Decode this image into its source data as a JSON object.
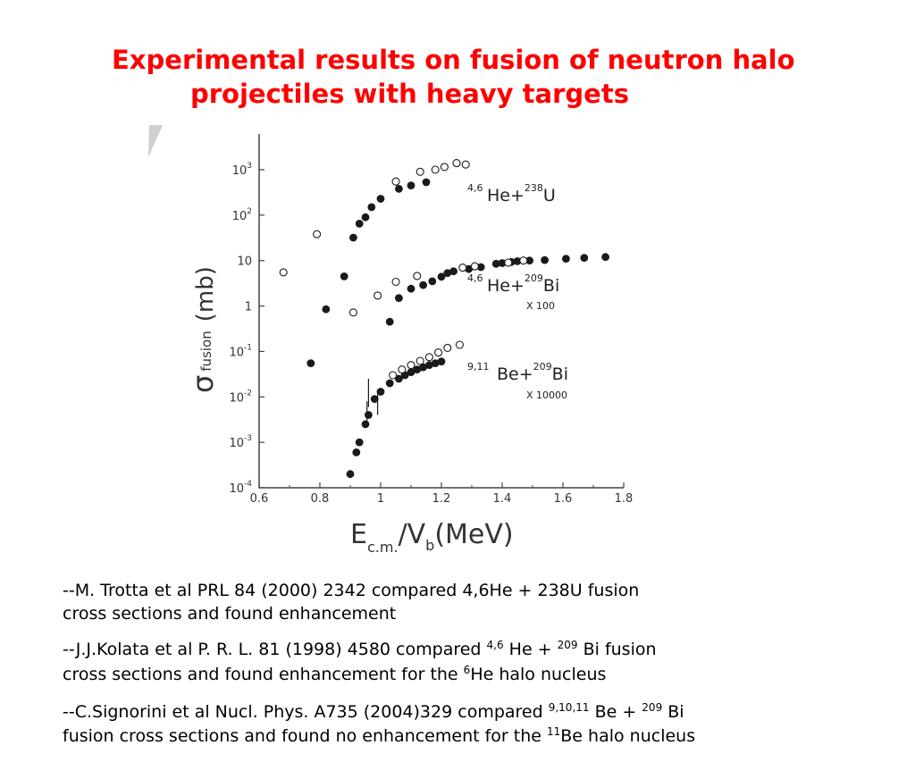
{
  "title": {
    "line1": "Experimental results on fusion of neutron halo",
    "line2": "projectiles with heavy  targets"
  },
  "chart_data": {
    "type": "scatter",
    "log_y": true,
    "xlabel_main": "E",
    "xlabel_sub1": "c.m.",
    "xlabel_mid": "/V",
    "xlabel_sub2": "b",
    "xlabel_tail": "(MeV)",
    "ylabel_main": "σ",
    "ylabel_sub": "fusion",
    "ylabel_unit": "(mb)",
    "xlim": [
      0.6,
      1.8
    ],
    "ylim": [
      0.0001,
      1000
    ],
    "x_ticks": [
      "0.6",
      "0.8",
      "1",
      "1.2",
      "1.4",
      "1.6",
      "1.8"
    ],
    "y_ticks": [
      {
        "base": "10",
        "exp": "3"
      },
      {
        "base": "10",
        "exp": "2"
      },
      {
        "base": "10",
        "exp": ""
      },
      {
        "base": "1",
        "exp": ""
      },
      {
        "base": "10",
        "exp": "-1"
      },
      {
        "base": "10",
        "exp": "-2"
      },
      {
        "base": "10",
        "exp": "-3"
      },
      {
        "base": "10",
        "exp": "-4"
      }
    ],
    "annotations": [
      {
        "sup": "4,6",
        "base": "He+",
        "sup2": "238",
        "base2": "U",
        "scale": ""
      },
      {
        "sup": "4,6",
        "base": "He+",
        "sup2": "209",
        "base2": "Bi",
        "scale": "X 100"
      },
      {
        "sup": "9,11",
        "base": "Be+",
        "sup2": "209",
        "base2": "Bi",
        "scale": "X 10000"
      }
    ],
    "series": [
      {
        "marker": "filled",
        "points": [
          [
            0.91,
            32
          ],
          [
            0.93,
            65
          ],
          [
            0.95,
            90
          ],
          [
            0.97,
            150
          ],
          [
            1.0,
            230
          ],
          [
            1.06,
            380
          ],
          [
            1.1,
            450
          ],
          [
            1.15,
            530
          ]
        ]
      },
      {
        "marker": "open",
        "points": [
          [
            0.79,
            38
          ],
          [
            1.05,
            550
          ],
          [
            1.13,
            900
          ],
          [
            1.18,
            1000
          ],
          [
            1.21,
            1150
          ],
          [
            1.25,
            1400
          ],
          [
            1.28,
            1300
          ]
        ]
      },
      {
        "marker": "filled",
        "points": [
          [
            0.77,
            0.055
          ],
          [
            0.82,
            0.85
          ],
          [
            0.88,
            4.5
          ],
          [
            1.03,
            0.45
          ],
          [
            1.06,
            1.5
          ],
          [
            1.1,
            2.4
          ],
          [
            1.14,
            2.9
          ],
          [
            1.17,
            3.5
          ],
          [
            1.2,
            4.4
          ],
          [
            1.22,
            5.3
          ],
          [
            1.24,
            5.8
          ],
          [
            1.29,
            6.5
          ],
          [
            1.33,
            7.2
          ],
          [
            1.38,
            8.5
          ],
          [
            1.4,
            8.8
          ],
          [
            1.43,
            9.3
          ],
          [
            1.45,
            9.7
          ],
          [
            1.49,
            10
          ],
          [
            1.54,
            10.3
          ],
          [
            1.61,
            11
          ],
          [
            1.67,
            11.5
          ],
          [
            1.74,
            12
          ]
        ]
      },
      {
        "marker": "open",
        "points": [
          [
            0.68,
            5.5
          ],
          [
            0.91,
            0.72
          ],
          [
            0.99,
            1.7
          ],
          [
            1.05,
            3.4
          ],
          [
            1.12,
            4.6
          ],
          [
            1.27,
            7
          ],
          [
            1.31,
            7.5
          ],
          [
            1.42,
            9
          ],
          [
            1.47,
            10
          ]
        ]
      },
      {
        "marker": "filled",
        "points": [
          [
            0.9,
            0.0002
          ],
          [
            0.92,
            0.0006
          ],
          [
            0.93,
            0.001
          ],
          [
            0.95,
            0.0025
          ],
          [
            0.96,
            0.004
          ],
          [
            0.98,
            0.009
          ],
          [
            1.0,
            0.013
          ],
          [
            1.03,
            0.02
          ],
          [
            1.06,
            0.025
          ],
          [
            1.08,
            0.03
          ],
          [
            1.1,
            0.035
          ],
          [
            1.12,
            0.04
          ],
          [
            1.14,
            0.045
          ],
          [
            1.16,
            0.05
          ],
          [
            1.18,
            0.055
          ],
          [
            1.2,
            0.06
          ]
        ]
      },
      {
        "marker": "open",
        "points": [
          [
            1.04,
            0.03
          ],
          [
            1.07,
            0.04
          ],
          [
            1.1,
            0.05
          ],
          [
            1.13,
            0.062
          ],
          [
            1.16,
            0.075
          ],
          [
            1.19,
            0.095
          ],
          [
            1.22,
            0.12
          ],
          [
            1.26,
            0.14
          ]
        ]
      }
    ],
    "error_bars": [
      [
        0.96,
        0.006,
        0.025
      ],
      [
        0.99,
        0.004,
        0.012
      ],
      [
        0.955,
        0.003,
        0.008
      ]
    ]
  },
  "references": [
    {
      "text": "--M. Trotta et al PRL 84 (2000) 2342 compared  4,6He + 238U fusion"
    },
    {
      "text": " cross sections and found enhancement"
    },
    {
      "pre": "--J.J.Kolata et al  P. R. L. 81 (1998) 4580 compared ",
      "s1": "4,6",
      "m1": " He + ",
      "s2": "209",
      "post": " Bi fusion"
    },
    {
      "pre": "cross sections and found enhancement for the ",
      "s1": "6",
      "post": "He halo nucleus"
    },
    {
      "pre": "--C.Signorini et al Nucl. Phys. A735 (2004)329  compared ",
      "s1": "9,10,11",
      "m1": " Be + ",
      "s2": "209",
      "post": " Bi"
    },
    {
      "pre": "fusion cross sections and found no enhancement for the ",
      "s1": "11",
      "post": "Be halo nucleus"
    }
  ]
}
